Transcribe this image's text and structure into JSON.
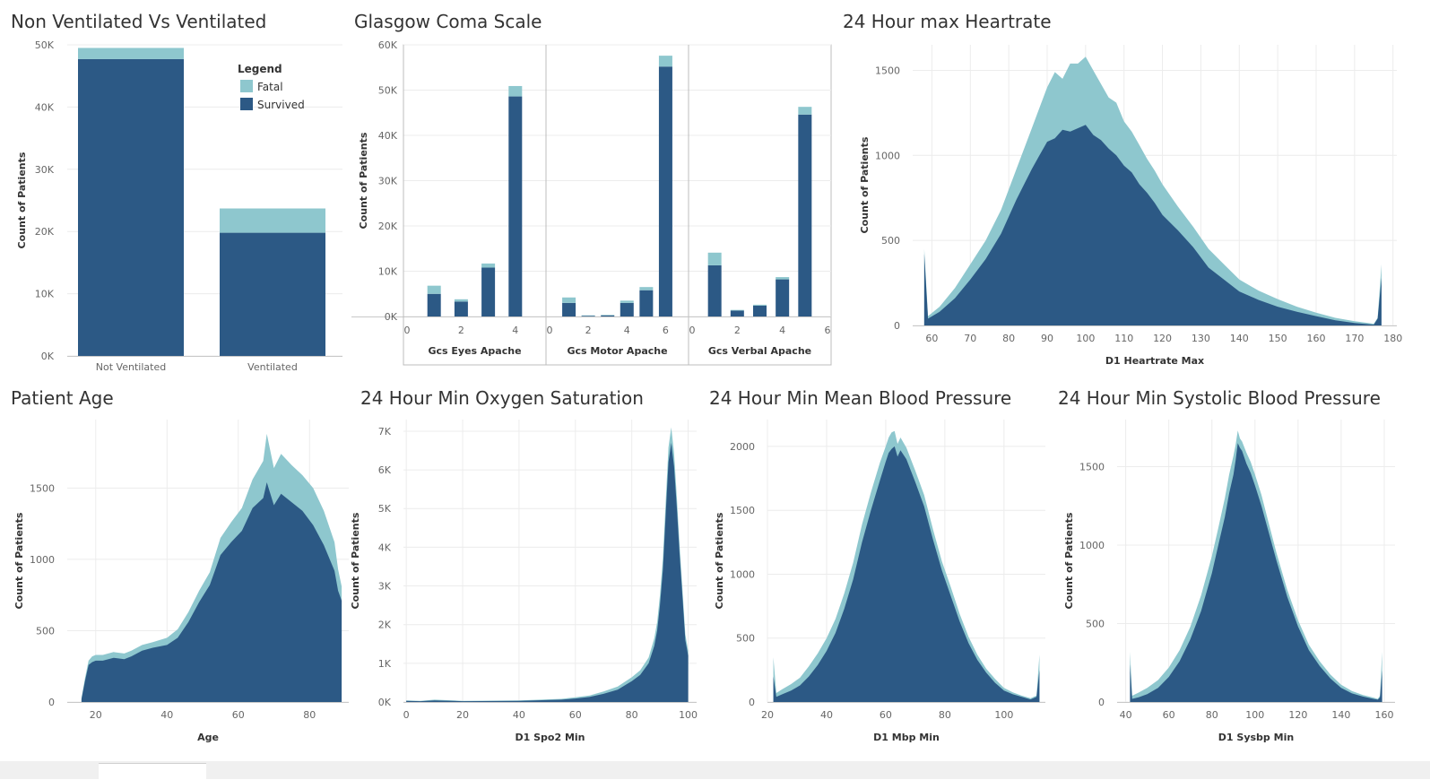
{
  "colors": {
    "fatal": "#8ec7ce",
    "survived": "#2c5985",
    "grid": "#ececec",
    "axis": "#c8c8c8",
    "divider": "#bcbcbc"
  },
  "legend": {
    "title": "Legend",
    "items": [
      {
        "label": "Fatal",
        "color": "#8ec7ce"
      },
      {
        "label": "Survived",
        "color": "#2c5985"
      }
    ]
  },
  "chart_data": [
    {
      "id": "vent",
      "type": "bar",
      "stacked": true,
      "title": "Non Ventilated Vs Ventilated",
      "xlabel": "",
      "ylabel": "Count of Patients",
      "ylim": [
        0,
        50000
      ],
      "yticks": [
        0,
        10000,
        20000,
        30000,
        40000,
        50000
      ],
      "ytick_labels": [
        "0K",
        "10K",
        "20K",
        "30K",
        "40K",
        "50K"
      ],
      "categories": [
        "Not Ventilated",
        "Ventilated"
      ],
      "series": [
        {
          "name": "Survived",
          "values": [
            47700,
            19800
          ]
        },
        {
          "name": "Fatal",
          "values": [
            1800,
            3900
          ]
        }
      ],
      "legend_position": "top-right"
    },
    {
      "id": "gcs",
      "type": "bar",
      "stacked": true,
      "title": "Glasgow Coma Scale",
      "ylabel": "Count of Patients",
      "ylim": [
        0,
        60000
      ],
      "yticks": [
        0,
        10000,
        20000,
        30000,
        40000,
        50000,
        60000
      ],
      "ytick_labels": [
        "0K",
        "10K",
        "20K",
        "30K",
        "40K",
        "50K",
        "60K"
      ],
      "facets": [
        {
          "label": "Gcs Eyes Apache",
          "xlim": [
            0,
            5
          ],
          "xticks": [
            0,
            2,
            4
          ],
          "x": [
            1,
            2,
            3,
            4
          ],
          "survived": [
            5000,
            3300,
            10800,
            48600
          ],
          "fatal": [
            1800,
            500,
            900,
            2300
          ]
        },
        {
          "label": "Gcs Motor Apache",
          "xlim": [
            0,
            7
          ],
          "xticks": [
            0,
            2,
            4,
            6
          ],
          "x": [
            1,
            2,
            3,
            4,
            5,
            6
          ],
          "survived": [
            3000,
            150,
            250,
            3000,
            5800,
            55200
          ],
          "fatal": [
            1200,
            100,
            100,
            500,
            700,
            2400
          ]
        },
        {
          "label": "Gcs Verbal Apache",
          "xlim": [
            0,
            6
          ],
          "xticks": [
            0,
            2,
            4,
            6
          ],
          "x": [
            1,
            2,
            3,
            4,
            5
          ],
          "survived": [
            11300,
            1300,
            2400,
            8200,
            44600
          ],
          "fatal": [
            2800,
            150,
            200,
            500,
            1700
          ]
        }
      ]
    },
    {
      "id": "hr",
      "type": "area",
      "stacked": true,
      "title": "24 Hour max Heartrate",
      "xlabel": "D1 Heartrate Max",
      "ylabel": "Count of Patients",
      "xlim": [
        55,
        181
      ],
      "ylim": [
        0,
        1650
      ],
      "xticks": [
        60,
        70,
        80,
        90,
        100,
        110,
        120,
        130,
        140,
        150,
        160,
        170,
        180
      ],
      "yticks": [
        0,
        500,
        1000,
        1500
      ],
      "x": [
        58,
        59,
        62,
        66,
        70,
        74,
        78,
        82,
        86,
        88,
        90,
        92,
        94,
        96,
        98,
        100,
        102,
        104,
        106,
        108,
        110,
        112,
        114,
        116,
        118,
        120,
        124,
        128,
        132,
        136,
        140,
        145,
        150,
        155,
        160,
        165,
        170,
        175,
        176,
        177
      ],
      "survived": [
        420,
        40,
        80,
        160,
        270,
        390,
        540,
        740,
        920,
        1000,
        1080,
        1100,
        1150,
        1140,
        1160,
        1180,
        1120,
        1090,
        1040,
        1000,
        940,
        900,
        830,
        780,
        720,
        650,
        560,
        460,
        340,
        270,
        200,
        150,
        110,
        80,
        55,
        30,
        15,
        5,
        40,
        280
      ],
      "fatal": [
        30,
        15,
        30,
        60,
        90,
        110,
        140,
        180,
        240,
        280,
        320,
        390,
        300,
        400,
        380,
        400,
        380,
        330,
        300,
        310,
        260,
        240,
        230,
        200,
        190,
        180,
        140,
        120,
        110,
        90,
        70,
        55,
        45,
        30,
        20,
        15,
        10,
        5,
        5,
        80
      ]
    },
    {
      "id": "age",
      "type": "area",
      "stacked": true,
      "title": "Patient Age",
      "xlabel": "Age",
      "ylabel": "Count of Patients",
      "xlim": [
        12,
        91
      ],
      "ylim": [
        0,
        1980
      ],
      "xticks": [
        20,
        40,
        60,
        80
      ],
      "yticks": [
        0,
        500,
        1000,
        1500
      ],
      "x": [
        16,
        17,
        18,
        19,
        20,
        22,
        25,
        28,
        30,
        33,
        36,
        40,
        43,
        46,
        49,
        52,
        55,
        58,
        61,
        64,
        67,
        68,
        70,
        72,
        75,
        78,
        81,
        84,
        87,
        88,
        89
      ],
      "survived": [
        20,
        150,
        260,
        280,
        290,
        290,
        310,
        300,
        320,
        360,
        380,
        400,
        450,
        560,
        700,
        820,
        1030,
        1120,
        1200,
        1360,
        1430,
        1540,
        1380,
        1460,
        1400,
        1340,
        1240,
        1100,
        920,
        780,
        710
      ],
      "fatal": [
        10,
        20,
        30,
        40,
        40,
        40,
        40,
        40,
        40,
        40,
        40,
        50,
        60,
        70,
        80,
        90,
        120,
        140,
        160,
        200,
        260,
        340,
        260,
        280,
        260,
        250,
        260,
        240,
        200,
        150,
        100
      ]
    },
    {
      "id": "spo2",
      "type": "area",
      "stacked": true,
      "title": "24 Hour Min Oxygen Saturation",
      "xlabel": "D1 Spo2 Min",
      "ylabel": "Count of Patients",
      "xlim": [
        -1,
        103
      ],
      "ylim": [
        0,
        7300
      ],
      "xticks": [
        0,
        20,
        40,
        60,
        80,
        100
      ],
      "yticks": [
        0,
        1000,
        2000,
        3000,
        4000,
        5000,
        6000,
        7000
      ],
      "ytick_labels": [
        "0K",
        "1K",
        "2K",
        "3K",
        "4K",
        "5K",
        "6K",
        "7K"
      ],
      "x": [
        0,
        5,
        10,
        20,
        40,
        55,
        60,
        65,
        70,
        75,
        80,
        83,
        86,
        88,
        89,
        90,
        91,
        92,
        93,
        94,
        95,
        96,
        97,
        98,
        99,
        100
      ],
      "survived": [
        30,
        20,
        40,
        20,
        30,
        60,
        90,
        130,
        210,
        320,
        540,
        700,
        1000,
        1450,
        1850,
        2500,
        3400,
        4800,
        6200,
        6700,
        6100,
        5000,
        3800,
        2700,
        1600,
        1200
      ],
      "fatal": [
        10,
        10,
        20,
        10,
        10,
        20,
        30,
        40,
        60,
        80,
        100,
        120,
        150,
        200,
        220,
        260,
        280,
        330,
        380,
        400,
        350,
        280,
        220,
        180,
        150,
        120
      ]
    },
    {
      "id": "mbp",
      "type": "area",
      "stacked": true,
      "title": "24 Hour Min Mean Blood Pressure",
      "xlabel": "D1 Mbp Min",
      "ylabel": "Count of Patients",
      "xlim": [
        20,
        114
      ],
      "ylim": [
        0,
        2210
      ],
      "xticks": [
        20,
        40,
        60,
        80,
        100
      ],
      "yticks": [
        0,
        500,
        1000,
        1500,
        2000
      ],
      "x": [
        22,
        23,
        25,
        28,
        31,
        34,
        37,
        40,
        43,
        46,
        49,
        52,
        55,
        58,
        60,
        61,
        62,
        63,
        64,
        65,
        67,
        70,
        73,
        76,
        79,
        82,
        85,
        88,
        91,
        94,
        97,
        100,
        103,
        106,
        109,
        111,
        112
      ],
      "survived": [
        200,
        40,
        60,
        90,
        130,
        200,
        290,
        400,
        540,
        730,
        960,
        1250,
        1500,
        1730,
        1880,
        1950,
        1980,
        2000,
        1920,
        1970,
        1900,
        1720,
        1530,
        1270,
        1030,
        830,
        630,
        460,
        330,
        230,
        150,
        90,
        60,
        40,
        20,
        40,
        250
      ],
      "fatal": [
        150,
        30,
        40,
        50,
        60,
        80,
        90,
        100,
        110,
        120,
        130,
        140,
        140,
        140,
        120,
        120,
        130,
        120,
        100,
        100,
        90,
        90,
        90,
        80,
        70,
        70,
        60,
        50,
        40,
        30,
        30,
        20,
        15,
        10,
        10,
        10,
        120
      ]
    },
    {
      "id": "sbp",
      "type": "area",
      "stacked": true,
      "title": "24 Hour Min Systolic Blood Pressure",
      "xlabel": "D1 Sysbp Min",
      "ylabel": "Count of Patients",
      "xlim": [
        36,
        165
      ],
      "ylim": [
        0,
        1800
      ],
      "xticks": [
        40,
        60,
        80,
        100,
        120,
        140,
        160
      ],
      "yticks": [
        0,
        500,
        1000,
        1500
      ],
      "x": [
        42,
        43,
        46,
        50,
        55,
        60,
        65,
        70,
        75,
        80,
        83,
        86,
        88,
        90,
        91,
        92,
        93,
        94,
        96,
        98,
        100,
        103,
        106,
        110,
        115,
        120,
        125,
        130,
        135,
        140,
        145,
        150,
        155,
        157,
        158,
        159
      ],
      "survived": [
        240,
        20,
        30,
        50,
        90,
        160,
        260,
        400,
        580,
        820,
        1000,
        1180,
        1330,
        1450,
        1540,
        1650,
        1620,
        1600,
        1520,
        1460,
        1380,
        1250,
        1100,
        900,
        670,
        480,
        330,
        230,
        150,
        90,
        55,
        35,
        20,
        15,
        30,
        200
      ],
      "fatal": [
        80,
        20,
        30,
        40,
        50,
        60,
        70,
        80,
        100,
        110,
        110,
        120,
        120,
        120,
        100,
        80,
        60,
        60,
        70,
        70,
        70,
        70,
        60,
        50,
        45,
        40,
        35,
        30,
        25,
        20,
        15,
        10,
        8,
        5,
        10,
        120
      ]
    }
  ]
}
